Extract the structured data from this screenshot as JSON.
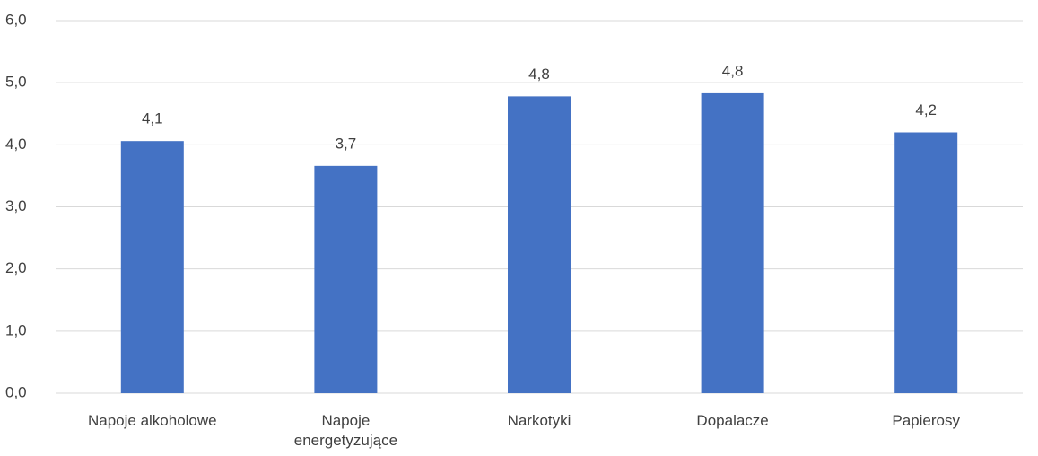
{
  "chart_data": {
    "type": "bar",
    "categories": [
      "Napoje alkoholowe",
      "Napoje energetyzujące",
      "Narkotyki",
      "Dopalacze",
      "Papierosy"
    ],
    "values": [
      4.06,
      3.66,
      4.78,
      4.83,
      4.2
    ],
    "value_labels": [
      "4,1",
      "3,7",
      "4,8",
      "4,8",
      "4,2"
    ],
    "color": "#4472c4",
    "ylim": [
      0,
      6
    ],
    "yticks": [
      {
        "value": 0,
        "label": "0,0"
      },
      {
        "value": 1,
        "label": "1,0"
      },
      {
        "value": 2,
        "label": "2,0"
      },
      {
        "value": 3,
        "label": "3,0"
      },
      {
        "value": 4,
        "label": "4,0"
      },
      {
        "value": 5,
        "label": "5,0"
      },
      {
        "value": 6,
        "label": "6,0"
      }
    ],
    "grid": true
  }
}
